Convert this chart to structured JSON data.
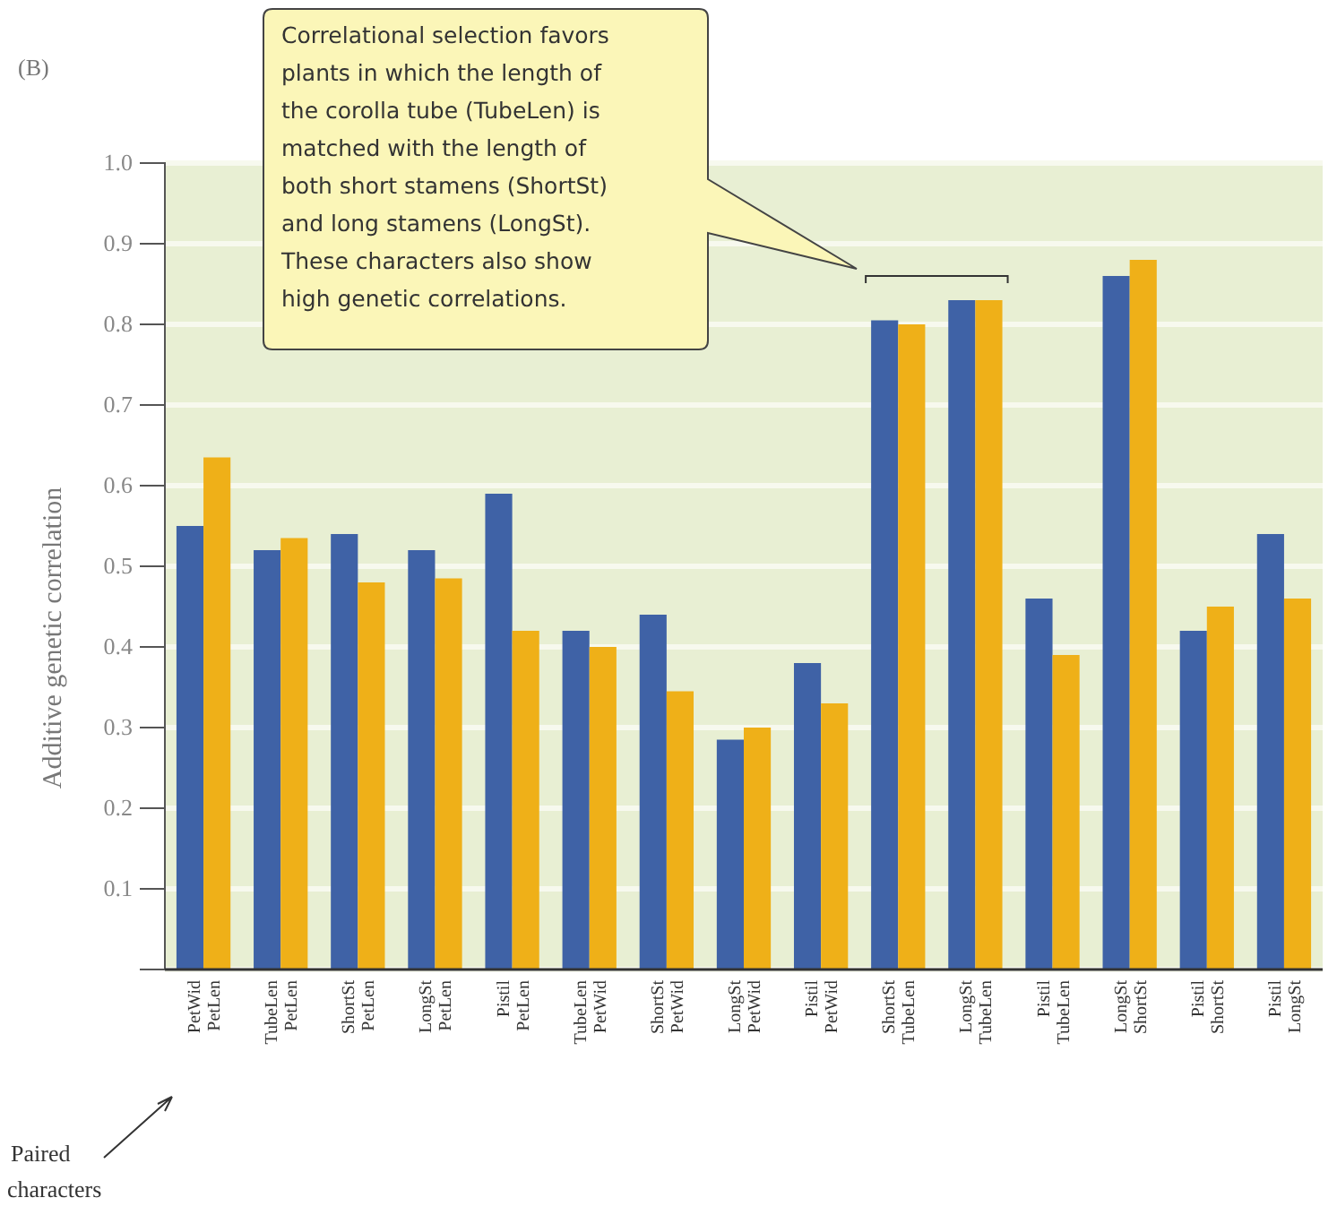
{
  "chart_data": {
    "type": "bar",
    "title": "(B)",
    "ylabel": "Additive genetic correlation",
    "categories": [
      "PetWid PetLen",
      "TubeLen PetLen",
      "ShortSt PetLen",
      "LongSt PetLen",
      "Pistil PetLen",
      "TubeLen PetWid",
      "ShortSt PetWid",
      "LongSt PetWid",
      "Pistil PetWid",
      "ShortSt TubeLen",
      "LongSt TubeLen",
      "Pistil TubeLen",
      "LongSt ShortSt",
      "Pistil ShortSt",
      "Pistil LongSt"
    ],
    "series": [
      {
        "color": "#3f62a6",
        "values": [
          0.55,
          0.52,
          0.54,
          0.52,
          0.59,
          0.42,
          0.44,
          0.285,
          0.38,
          0.805,
          0.83,
          0.46,
          0.86,
          0.42,
          0.54
        ]
      },
      {
        "color": "#efb018",
        "values": [
          0.635,
          0.535,
          0.48,
          0.485,
          0.42,
          0.4,
          0.345,
          0.3,
          0.33,
          0.8,
          0.83,
          0.39,
          0.88,
          0.45,
          0.46
        ]
      }
    ],
    "ylim": [
      0,
      1.0
    ],
    "yticks": [
      {
        "value": 0,
        "label": null
      },
      0.1,
      0.2,
      0.3,
      0.4,
      0.5,
      0.6,
      0.7,
      0.8,
      0.9,
      {
        "value": 1.0,
        "label": "1.0"
      }
    ],
    "grid": "y",
    "annotations": [
      {
        "text": "Correlational selection favors plants in which the length of the corolla tube (TubeLen) is matched with the length of both short stamens (ShortSt) and long stamens (LongSt). These characters also show high genetic correlations."
      },
      {
        "text": "Paired characters"
      }
    ]
  }
}
